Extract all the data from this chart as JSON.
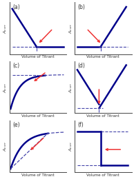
{
  "panels": [
    "a",
    "b",
    "c",
    "d",
    "e",
    "f"
  ],
  "bg_color": "#ffffff",
  "line_color": "#00008B",
  "dashed_color": "#4444AA",
  "arrow_color": "#EE3333",
  "label_color": "#333333",
  "figsize": [
    1.94,
    2.6
  ],
  "dpi": 100
}
